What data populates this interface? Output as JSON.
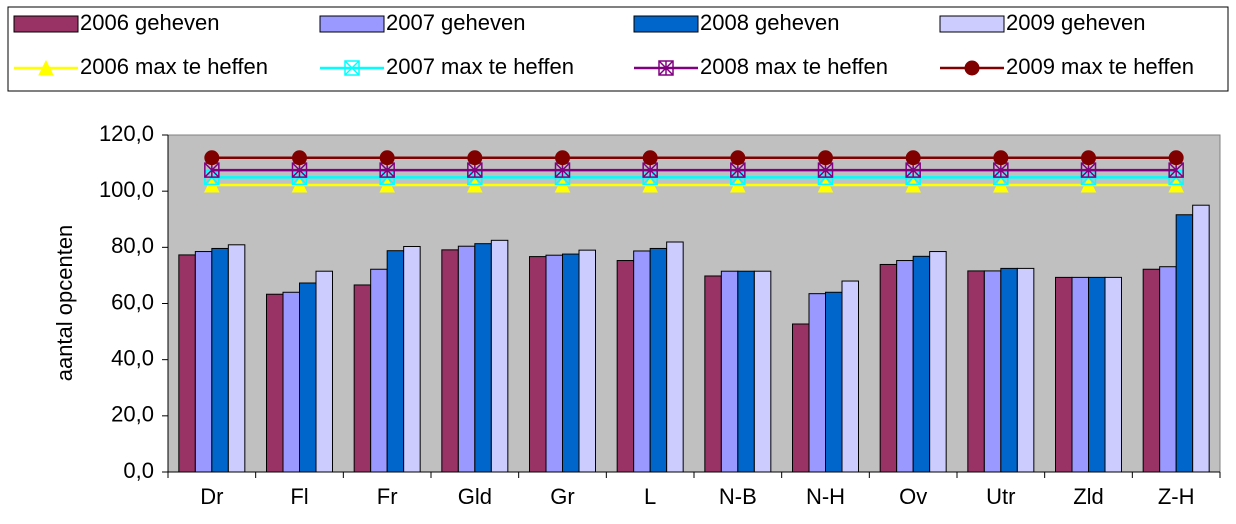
{
  "chart_data": {
    "type": "bar",
    "y_label": "aantal opcenten",
    "categories": [
      "Dr",
      "Fl",
      "Fr",
      "Gld",
      "Gr",
      "L",
      "N-B",
      "N-H",
      "Ov",
      "Utr",
      "Zld",
      "Z-H"
    ],
    "ylim": [
      0,
      120
    ],
    "yticks": [
      {
        "value": 0,
        "label": "0,0"
      },
      {
        "value": 20,
        "label": "20,0"
      },
      {
        "value": 40,
        "label": "40,0"
      },
      {
        "value": 60,
        "label": "60,0"
      },
      {
        "value": 80,
        "label": "80,0"
      },
      {
        "value": 100,
        "label": "100,0"
      },
      {
        "value": 120,
        "label": "120,0"
      }
    ],
    "grid": false,
    "background": "#c0c0c0",
    "series": [
      {
        "name": "2006 geheven",
        "type": "bar",
        "color": "#993366",
        "values": [
          77.3,
          63.3,
          66.6,
          79.1,
          76.7,
          75.3,
          69.8,
          52.7,
          73.9,
          71.6,
          69.3,
          72.2
        ]
      },
      {
        "name": "2007 geheven",
        "type": "bar",
        "color": "#9999ff",
        "values": [
          78.5,
          64.0,
          72.2,
          80.4,
          77.2,
          78.7,
          71.5,
          63.5,
          75.3,
          71.6,
          69.3,
          73.1
        ]
      },
      {
        "name": "2008 geheven",
        "type": "bar",
        "color": "#0066cc",
        "values": [
          79.6,
          67.3,
          78.8,
          81.3,
          77.6,
          79.6,
          71.5,
          64.0,
          76.8,
          72.5,
          69.3,
          91.6
        ]
      },
      {
        "name": "2009 geheven",
        "type": "bar",
        "color": "#ccccff",
        "values": [
          80.9,
          71.5,
          80.3,
          82.5,
          79.0,
          81.9,
          71.5,
          68.0,
          78.5,
          72.5,
          69.3,
          95.0
        ]
      },
      {
        "name": "2006 max te heffen",
        "type": "line",
        "marker": "triangle",
        "color": "#ffff00",
        "values": [
          102.2,
          102.2,
          102.2,
          102.2,
          102.2,
          102.2,
          102.2,
          102.2,
          102.2,
          102.2,
          102.2,
          102.2
        ]
      },
      {
        "name": "2007 max te heffen",
        "type": "line",
        "marker": "x-square",
        "color": "#00ffff",
        "values": [
          104.9,
          104.9,
          104.9,
          104.9,
          104.9,
          104.9,
          104.9,
          104.9,
          104.9,
          104.9,
          104.9,
          104.9
        ]
      },
      {
        "name": "2008 max te heffen",
        "type": "line",
        "marker": "star-square",
        "color": "#800080",
        "values": [
          107.5,
          107.5,
          107.5,
          107.5,
          107.5,
          107.5,
          107.5,
          107.5,
          107.5,
          107.5,
          107.5,
          107.5
        ]
      },
      {
        "name": "2009 max te heffen",
        "type": "line",
        "marker": "circle",
        "color": "#800000",
        "values": [
          111.9,
          111.9,
          111.9,
          111.9,
          111.9,
          111.9,
          111.9,
          111.9,
          111.9,
          111.9,
          111.9,
          111.9
        ]
      }
    ]
  }
}
